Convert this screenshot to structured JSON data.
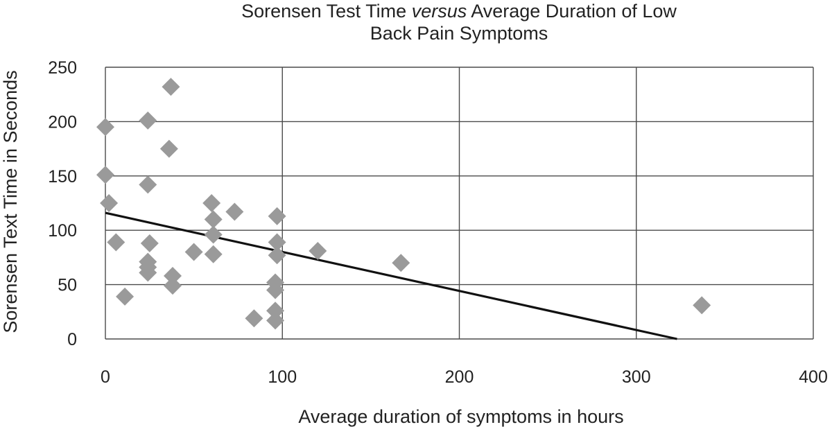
{
  "chart_data": {
    "type": "scatter",
    "title_parts": [
      "Sorensen Test Time ",
      "versus",
      " Average Duration of Low",
      "Back Pain Symptoms"
    ],
    "xlabel": "Average duration of symptoms in hours",
    "ylabel": "Sorensen Text Time in Seconds",
    "xlim": [
      0,
      400
    ],
    "ylim": [
      0,
      250
    ],
    "xticks": [
      "0",
      "100",
      "200",
      "300",
      "400"
    ],
    "yticks": [
      "0",
      "50",
      "100",
      "150",
      "200",
      "250"
    ],
    "grid": true,
    "marker": "diamond",
    "colors": {
      "marker": "#9a9a9a",
      "trendline": "#111111",
      "grid": "#4a4a4a"
    },
    "points": [
      {
        "x": 0,
        "y": 195
      },
      {
        "x": 0,
        "y": 151
      },
      {
        "x": 2,
        "y": 125
      },
      {
        "x": 6,
        "y": 89
      },
      {
        "x": 11,
        "y": 39
      },
      {
        "x": 24,
        "y": 201
      },
      {
        "x": 24,
        "y": 142
      },
      {
        "x": 25,
        "y": 88
      },
      {
        "x": 24,
        "y": 71
      },
      {
        "x": 24,
        "y": 66
      },
      {
        "x": 24,
        "y": 61
      },
      {
        "x": 37,
        "y": 232
      },
      {
        "x": 36,
        "y": 175
      },
      {
        "x": 38,
        "y": 58
      },
      {
        "x": 38,
        "y": 49
      },
      {
        "x": 50,
        "y": 80
      },
      {
        "x": 60,
        "y": 125
      },
      {
        "x": 61,
        "y": 110
      },
      {
        "x": 61,
        "y": 96
      },
      {
        "x": 61,
        "y": 78
      },
      {
        "x": 73,
        "y": 117
      },
      {
        "x": 84,
        "y": 19
      },
      {
        "x": 97,
        "y": 113
      },
      {
        "x": 97,
        "y": 89
      },
      {
        "x": 97,
        "y": 77
      },
      {
        "x": 96,
        "y": 52
      },
      {
        "x": 96,
        "y": 45
      },
      {
        "x": 96,
        "y": 26
      },
      {
        "x": 96,
        "y": 17
      },
      {
        "x": 120,
        "y": 81
      },
      {
        "x": 167,
        "y": 70
      },
      {
        "x": 337,
        "y": 31
      }
    ],
    "trendline": {
      "x": [
        0,
        323
      ],
      "y": [
        116,
        0
      ]
    }
  }
}
